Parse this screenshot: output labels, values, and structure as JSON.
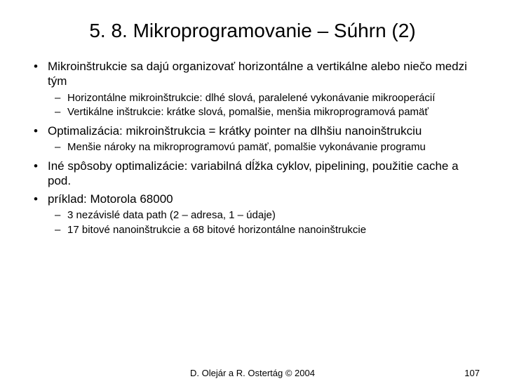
{
  "title": "5. 8. Mikroprogramovanie – Súhrn (2)",
  "bullets": [
    {
      "text": "Mikroinštrukcie sa dajú organizovať horizontálne a vertikálne alebo niečo medzi tým",
      "sub": [
        "Horizontálne mikroinštrukcie: dlhé slová, paralelené vykonávanie mikrooperácií",
        "Vertikálne inštrukcie: krátke slová, pomalšie, menšia mikroprogramová pamäť"
      ]
    },
    {
      "text": "Optimalizácia: mikroinštrukcia = krátky pointer na dlhšiu nanoinštrukciu",
      "sub": [
        "Menšie nároky na mikroprogramovú pamäť, pomalšie vykonávanie programu"
      ]
    },
    {
      "text": "Iné spôsoby optimalizácie: variabilná dĺžka cyklov, pipelining, použitie cache a pod.",
      "sub": []
    },
    {
      "text": "príklad: Motorola 68000",
      "sub": [
        "3 nezávislé data path (2 – adresa, 1 – údaje)",
        "17 bitové nanoinštrukcie a 68 bitové horizontálne nanoinštrukcie"
      ]
    }
  ],
  "footer": {
    "center": "D. Olejár a R. Ostertág © 2004",
    "page": "107"
  }
}
